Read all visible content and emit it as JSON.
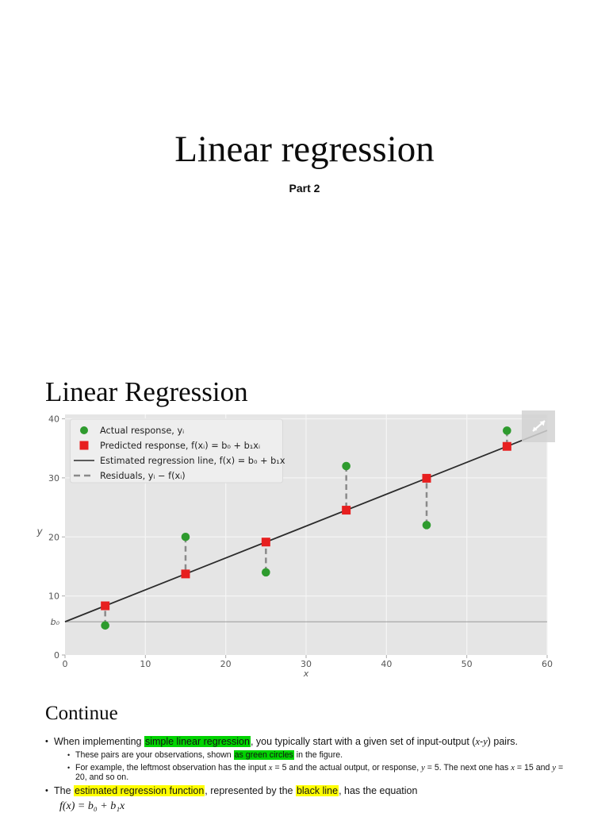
{
  "title_slide": {
    "title": "Linear regression",
    "subtitle": "Part 2"
  },
  "chart_slide": {
    "heading": "Linear Regression",
    "expand_icon": "diagonal-expand-arrow"
  },
  "chart_data": {
    "type": "scatter",
    "xlabel": "x",
    "ylabel": "y",
    "xlim": [
      0,
      60
    ],
    "ylim": [
      0,
      40
    ],
    "x_ticks": [
      0,
      10,
      20,
      30,
      40,
      50,
      60
    ],
    "y_ticks": [
      0,
      10,
      20,
      30,
      40
    ],
    "b0_tick_label": "b₀",
    "coefficients": {
      "b0": 5.63,
      "b1": 0.54
    },
    "x": [
      5,
      15,
      25,
      35,
      45,
      55
    ],
    "series": [
      {
        "name": "Actual response, yᵢ",
        "marker": "circle",
        "color": "#2e9b2e",
        "values": [
          5,
          20,
          14,
          32,
          22,
          38
        ]
      },
      {
        "name": "Predicted response, f(xᵢ) = b₀ + b₁xᵢ",
        "marker": "square",
        "color": "#e71f1f",
        "values": [
          8.33,
          13.73,
          19.13,
          24.53,
          29.93,
          35.33
        ]
      }
    ],
    "regression_line": {
      "name": "Estimated regression line, f(x) = b₀ + b₁x",
      "color": "#2b2b2b"
    },
    "residuals": {
      "name": "Residuals, yᵢ − f(xᵢ)",
      "color": "#8a8a8a",
      "style": "dashed"
    },
    "grid": true,
    "legend_position": "upper left",
    "colors": {
      "plot_bg": "#e5e5e5",
      "grid": "#f5f5f5",
      "legend_bg": "#eeeeee",
      "legend_border": "#d9d9d9",
      "tick_text": "#555555",
      "b0_line": "#999999"
    }
  },
  "continue_slide": {
    "heading": "Continue",
    "items": [
      {
        "level": 1,
        "segments": [
          {
            "t": "When implementing "
          },
          {
            "t": "simple linear regression",
            "hl": "green"
          },
          {
            "t": ", you typically start with a given set of input-output ("
          },
          {
            "t": "x",
            "i": true
          },
          {
            "t": "-"
          },
          {
            "t": "y",
            "i": true
          },
          {
            "t": ") pairs."
          }
        ]
      },
      {
        "level": 2,
        "segments": [
          {
            "t": "These pairs are your observations, shown "
          },
          {
            "t": "as green circles",
            "hl": "green"
          },
          {
            "t": " in the figure."
          }
        ]
      },
      {
        "level": 2,
        "segments": [
          {
            "t": "For example, the leftmost observation has the input "
          },
          {
            "t": "x",
            "i": true
          },
          {
            "t": " = 5 and the actual output, or response, "
          },
          {
            "t": "y",
            "i": true
          },
          {
            "t": " = 5. The next one has "
          },
          {
            "t": "x",
            "i": true
          },
          {
            "t": " = 15 and "
          },
          {
            "t": "y",
            "i": true
          },
          {
            "t": " = 20, and so on."
          }
        ]
      },
      {
        "level": 1,
        "segments": [
          {
            "t": "The "
          },
          {
            "t": "estimated regression function",
            "hl": "yellow"
          },
          {
            "t": ", represented by the "
          },
          {
            "t": "black line",
            "hl": "yellow"
          },
          {
            "t": ", has the equation"
          }
        ]
      },
      {
        "level": 0,
        "segments": [
          {
            "t": "f(x) = b₀ + b₁x",
            "i": true
          }
        ]
      }
    ]
  }
}
